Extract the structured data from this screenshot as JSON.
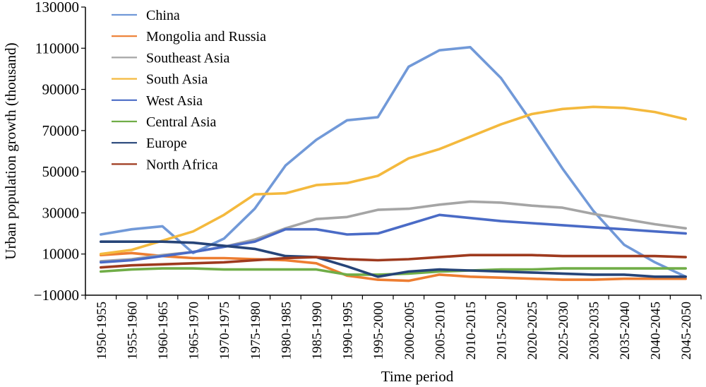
{
  "chart_data": {
    "type": "line",
    "title": "",
    "xlabel": "Time period",
    "ylabel": "Urban population growth (thousand)",
    "ylim": [
      -10000,
      130000
    ],
    "yticks": [
      -10000,
      10000,
      30000,
      50000,
      70000,
      90000,
      110000,
      130000
    ],
    "ytick_labels": [
      "−10000",
      "10000",
      "30000",
      "50000",
      "70000",
      "90000",
      "110000",
      "130000"
    ],
    "grid": false,
    "legend_position": "top-left",
    "categories": [
      "1950-1955",
      "1955-1960",
      "1960-1965",
      "1965-1970",
      "1970-1975",
      "1975-1980",
      "1980-1985",
      "1985-1990",
      "1990-1995",
      "1995-2000",
      "2000-2005",
      "2005-2010",
      "2010-2015",
      "2015-2020",
      "2020-2025",
      "2025-2030",
      "2030-2035",
      "2035-2040",
      "2040-2045",
      "2045-2050"
    ],
    "series": [
      {
        "name": "China",
        "color": "#7199d8",
        "values": [
          19500,
          22000,
          23500,
          10500,
          17500,
          32000,
          53000,
          65500,
          75000,
          76500,
          101000,
          109000,
          110500,
          95500,
          74000,
          51500,
          31000,
          14500,
          6000,
          -1000
        ]
      },
      {
        "name": "Mongolia and Russia",
        "color": "#ed7d31",
        "values": [
          9500,
          10500,
          9000,
          8000,
          8000,
          7500,
          7000,
          5500,
          -500,
          -2500,
          -3000,
          0,
          -1000,
          -1500,
          -2000,
          -2500,
          -2500,
          -2000,
          -2000,
          -2000
        ]
      },
      {
        "name": "Southeast Asia",
        "color": "#a5a5a5",
        "values": [
          6500,
          7500,
          9500,
          11000,
          13500,
          17000,
          22500,
          27000,
          28000,
          31500,
          32000,
          34000,
          35500,
          35000,
          33500,
          32500,
          29500,
          27000,
          24500,
          22500
        ]
      },
      {
        "name": "South Asia",
        "color": "#f4b93d",
        "values": [
          10000,
          12000,
          16500,
          21000,
          29000,
          39000,
          39500,
          43500,
          44500,
          48000,
          56500,
          61000,
          67000,
          73000,
          78000,
          80500,
          81500,
          81000,
          79000,
          75500
        ]
      },
      {
        "name": "West Asia",
        "color": "#4a6bc6",
        "values": [
          6000,
          7000,
          9000,
          11000,
          13500,
          16000,
          22000,
          22000,
          19500,
          20000,
          24500,
          29000,
          27500,
          26000,
          25000,
          24000,
          23000,
          22000,
          21000,
          20000
        ]
      },
      {
        "name": "Central Asia",
        "color": "#70ad47",
        "values": [
          1500,
          2500,
          3000,
          3000,
          2500,
          2500,
          2500,
          2500,
          0,
          0,
          500,
          1500,
          2000,
          2500,
          2500,
          3000,
          3000,
          3000,
          3000,
          3000
        ]
      },
      {
        "name": "Europe",
        "color": "#264478",
        "values": [
          16000,
          16000,
          16000,
          15500,
          14000,
          12500,
          9000,
          8500,
          4000,
          -1000,
          1500,
          2500,
          2000,
          1500,
          1000,
          500,
          0,
          0,
          -1000,
          -1000
        ]
      },
      {
        "name": "North Africa",
        "color": "#9e3a1e",
        "values": [
          3500,
          4500,
          5000,
          5500,
          6000,
          7000,
          8000,
          8500,
          7500,
          7000,
          7500,
          8500,
          9500,
          9500,
          9500,
          9000,
          9000,
          9000,
          9000,
          8500
        ]
      }
    ]
  }
}
